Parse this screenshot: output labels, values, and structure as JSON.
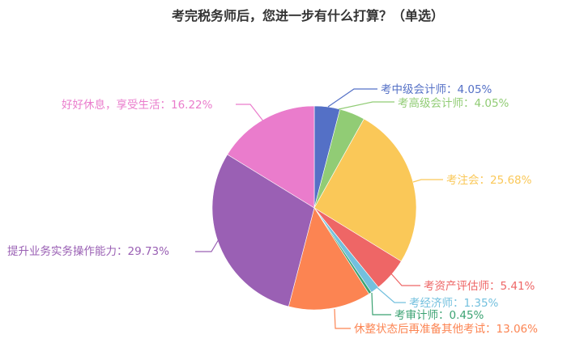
{
  "chart_data": {
    "type": "pie",
    "title": "考完税务师后，您进一步有什么打算？（单选）",
    "start_angle": "12 o'clock, clockwise",
    "legend": "none (inline labels with leader lines)",
    "slices": [
      {
        "label": "考中级会计师",
        "value": 4.05,
        "color": "#5470c6"
      },
      {
        "label": "考高级会计师",
        "value": 4.05,
        "color": "#91cc75"
      },
      {
        "label": "考注会",
        "value": 25.68,
        "color": "#fac858"
      },
      {
        "label": "考资产评估师",
        "value": 5.41,
        "color": "#ee6666"
      },
      {
        "label": "考经济师",
        "value": 1.35,
        "color": "#73c0de"
      },
      {
        "label": "考审计师",
        "value": 0.45,
        "color": "#3ba272"
      },
      {
        "label": "休整状态后再准备其他考试",
        "value": 13.06,
        "color": "#fc8452"
      },
      {
        "label": "提升业务实务操作能力",
        "value": 29.73,
        "color": "#9a60b4"
      },
      {
        "label": "好好休息，享受生活",
        "value": 16.22,
        "color": "#ea7ccc"
      }
    ]
  },
  "labels": [
    {
      "text": "考中级会计师：4.05%"
    },
    {
      "text": "考高级会计师：4.05%"
    },
    {
      "text": "考注会：25.68%"
    },
    {
      "text": "考资产评估师：5.41%"
    },
    {
      "text": "考经济师：1.35%"
    },
    {
      "text": "考审计师：0.45%"
    },
    {
      "text": "休整状态后再准备其他考试：13.06%"
    },
    {
      "text": "提升业务实务操作能力：29.73%"
    },
    {
      "text": "好好休息，享受生活：16.22%"
    }
  ]
}
